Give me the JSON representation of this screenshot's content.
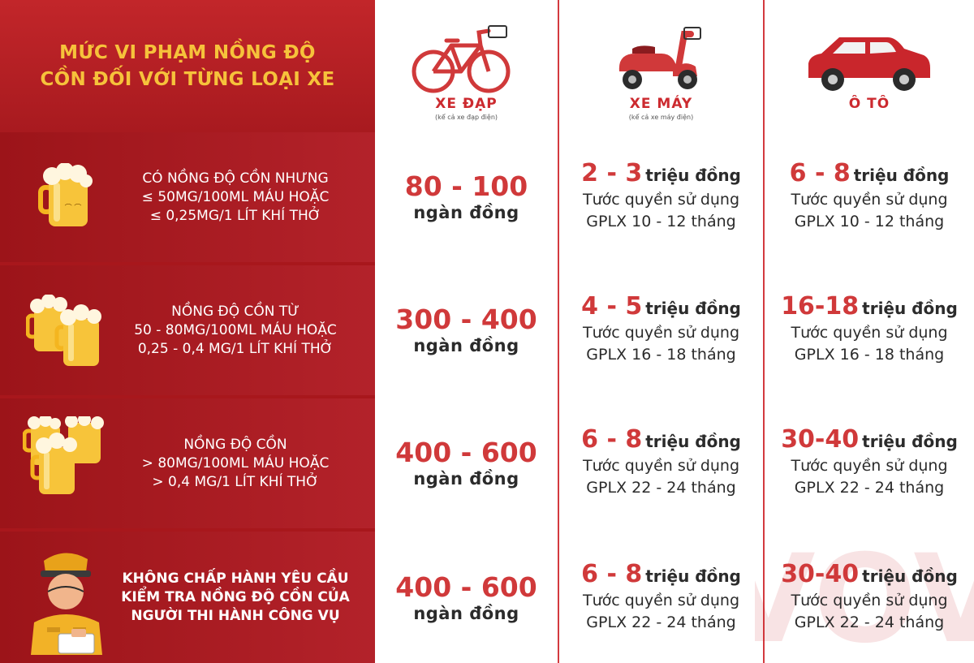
{
  "title": {
    "line1": "MỨC VI PHẠM NỒNG ĐỘ",
    "line2": "CỒN ĐỐI VỚI TỪNG LOẠI XE"
  },
  "vehicles": [
    {
      "name": "XE ĐẠP",
      "note": "(kể cả xe đạp điện)",
      "icon": "bicycle-icon"
    },
    {
      "name": "XE MÁY",
      "note": "(kể cả xe máy điện)",
      "icon": "motorbike-icon"
    },
    {
      "name": "Ô TÔ",
      "note": "",
      "icon": "car-icon"
    }
  ],
  "rows": [
    {
      "icon": "beer-mug-icon",
      "condition": [
        "CÓ NỒNG ĐỘ CỒN NHƯNG",
        "≤ 50MG/100ML MÁU HOẶC",
        "≤ 0,25MG/1 LÍT KHÍ THỞ"
      ],
      "bicycle": {
        "amount": "80 - 100",
        "unit": "ngàn đồng"
      },
      "motorbike": {
        "amount": "2 - 3",
        "unit": "triệu đồng",
        "line2": "Tước quyền sử dụng",
        "line3": "GPLX 10 - 12 tháng"
      },
      "car": {
        "amount": "6 - 8",
        "unit": "triệu đồng",
        "line2": "Tước quyền sử dụng",
        "line3": "GPLX 10 - 12 tháng"
      }
    },
    {
      "icon": "two-beer-mugs-icon",
      "condition": [
        "NỒNG ĐỘ CỒN TỪ",
        "50 - 80MG/100ML MÁU HOẶC",
        "0,25 - 0,4 MG/1 LÍT KHÍ THỞ"
      ],
      "bicycle": {
        "amount": "300 - 400",
        "unit": "ngàn đồng"
      },
      "motorbike": {
        "amount": "4 - 5",
        "unit": "triệu đồng",
        "line2": "Tước quyền sử dụng",
        "line3": "GPLX 16 - 18 tháng"
      },
      "car": {
        "amount": "16-18",
        "unit": "triệu đồng",
        "line2": "Tước quyền sử dụng",
        "line3": "GPLX 16 - 18 tháng"
      }
    },
    {
      "icon": "three-beer-mugs-icon",
      "condition": [
        "NỒNG ĐỘ CỒN",
        "> 80MG/100ML MÁU HOẶC",
        "> 0,4 MG/1 LÍT KHÍ THỞ"
      ],
      "bicycle": {
        "amount": "400 - 600",
        "unit": "ngàn đồng"
      },
      "motorbike": {
        "amount": "6 - 8",
        "unit": "triệu đồng",
        "line2": "Tước quyền sử dụng",
        "line3": "GPLX 22 - 24 tháng"
      },
      "car": {
        "amount": "30-40",
        "unit": "triệu đồng",
        "line2": "Tước quyền sử dụng",
        "line3": "GPLX 22 - 24 tháng"
      }
    },
    {
      "icon": "traffic-police-icon",
      "condition": [
        "KHÔNG CHẤP HÀNH YÊU CẦU",
        "KIỂM TRA NỒNG ĐỘ CỒN CỦA",
        "NGƯỜI THI HÀNH CÔNG VỤ"
      ],
      "bicycle": {
        "amount": "400 - 600",
        "unit": "ngàn đồng"
      },
      "motorbike": {
        "amount": "6 - 8",
        "unit": "triệu đồng",
        "line2": "Tước quyền sử dụng",
        "line3": "GPLX 22 - 24 tháng"
      },
      "car": {
        "amount": "30-40",
        "unit": "triệu đồng",
        "line2": "Tước quyền sử dụng",
        "line3": "GPLX 22 - 24 tháng"
      }
    }
  ],
  "watermark": {
    "text": "VOV"
  },
  "colors": {
    "brand_red": "#a8171c",
    "accent_red": "#d0393a",
    "title_yellow": "#f6c23b"
  }
}
